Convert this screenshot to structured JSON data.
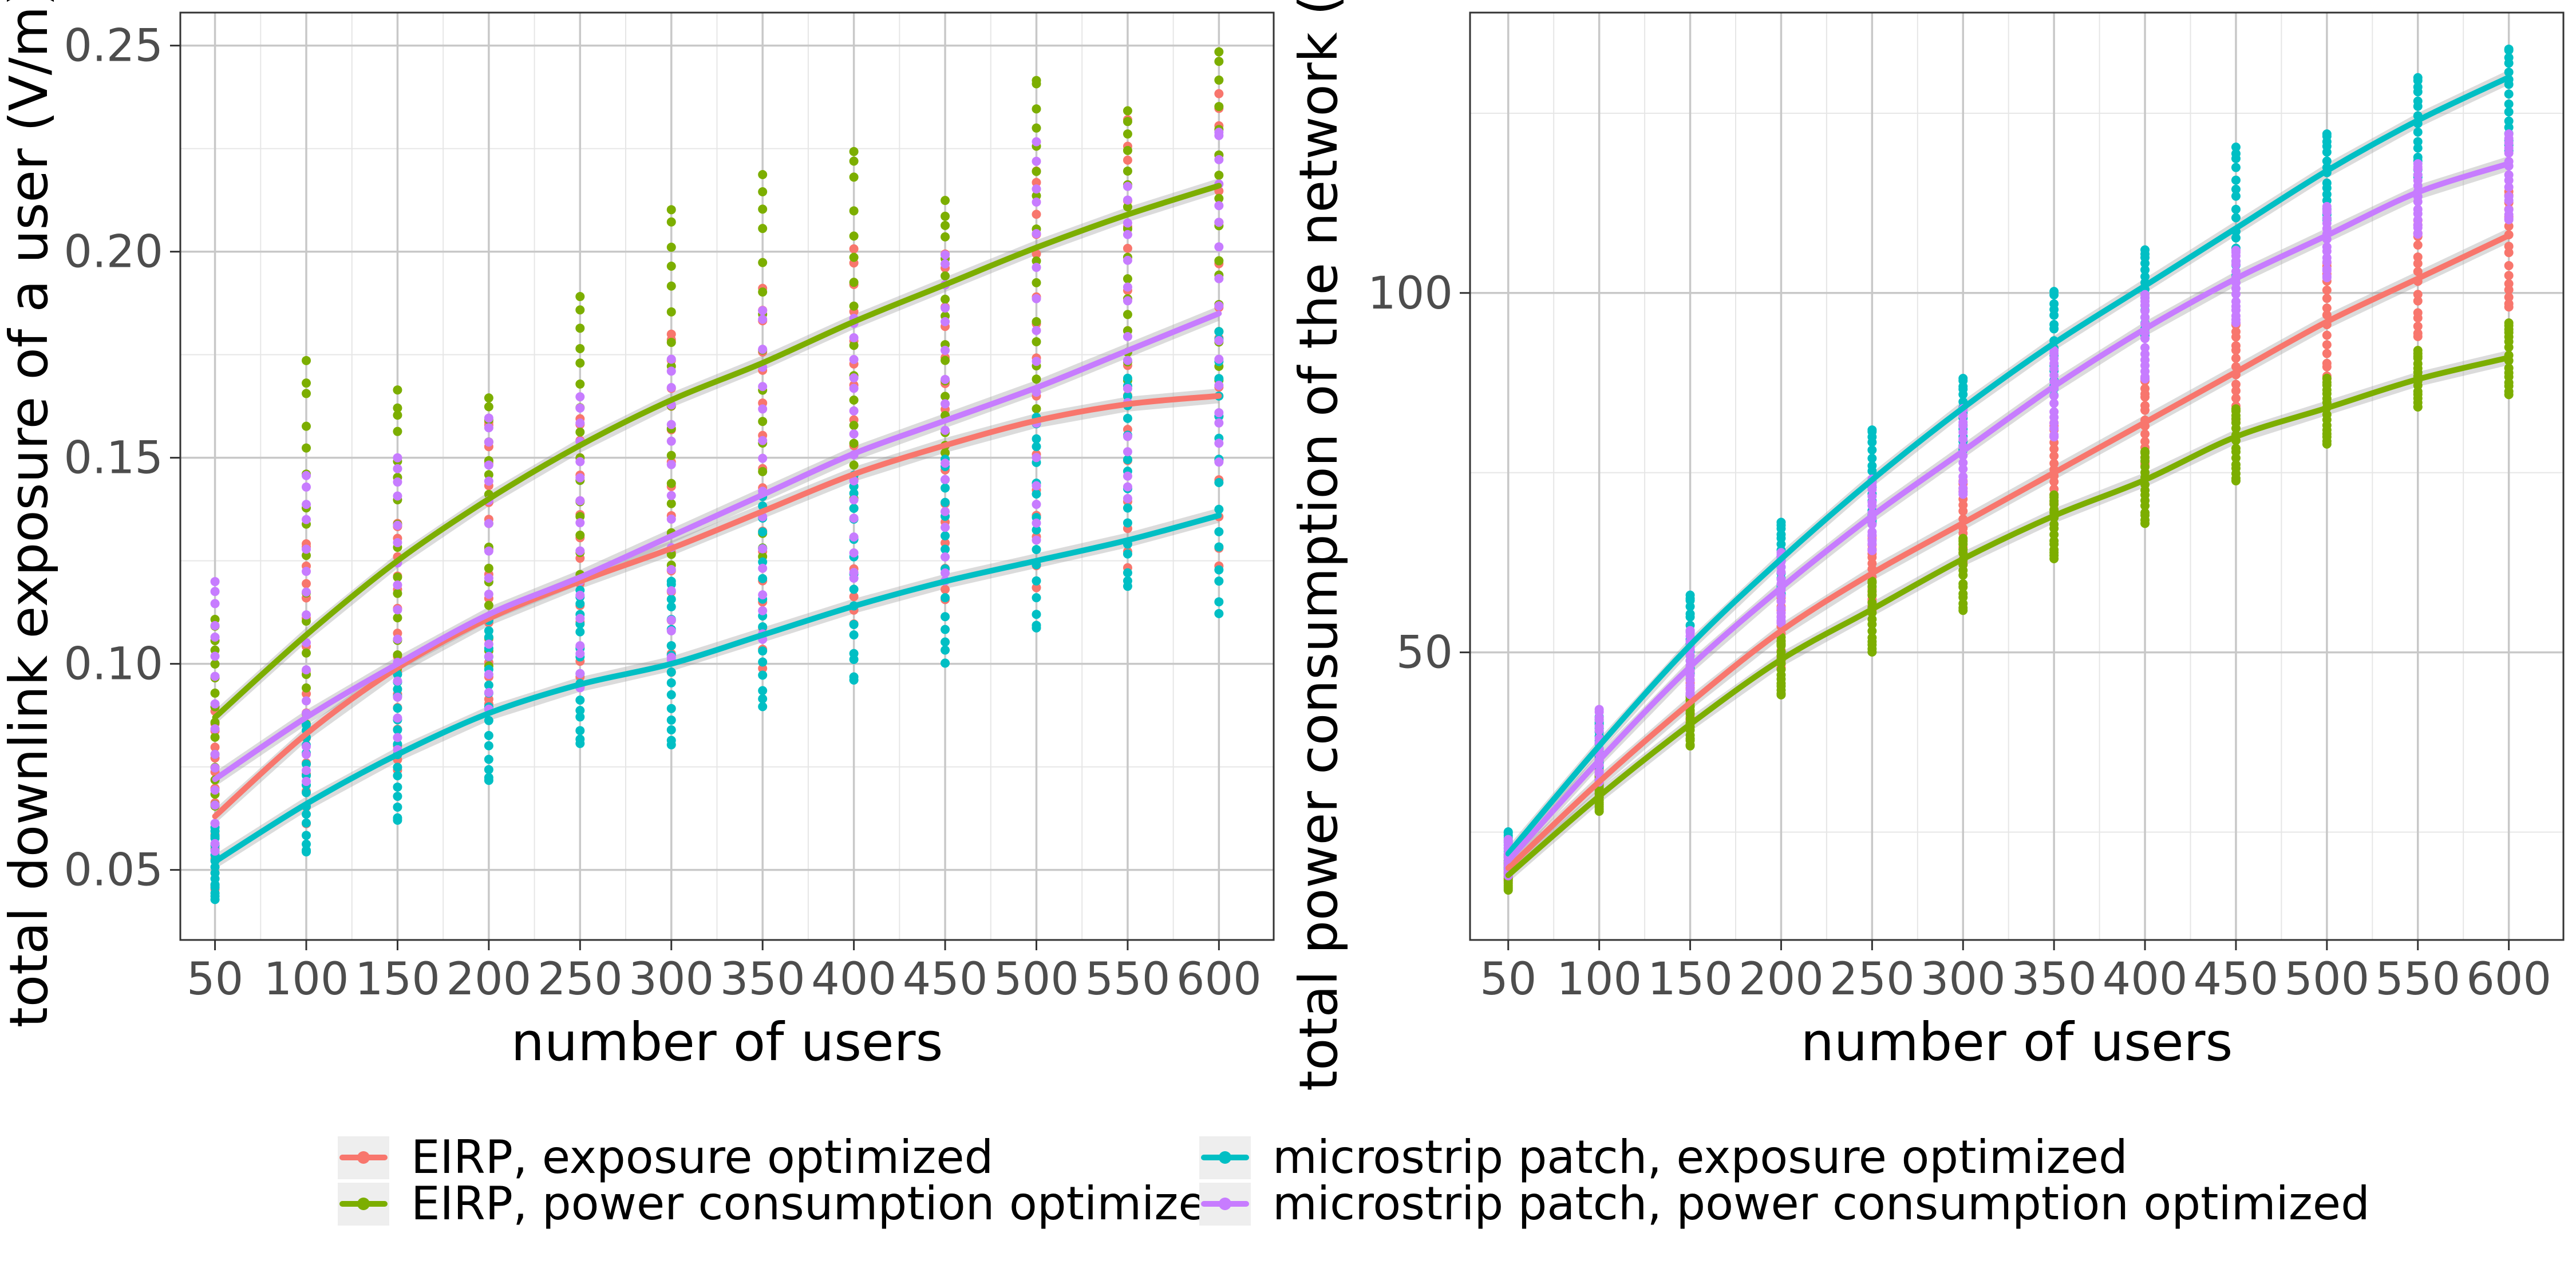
{
  "chart_data": [
    {
      "type": "scatter",
      "xlabel": "number of users",
      "ylabel": "total downlink exposure of a user (V/m)",
      "x_ticks": [
        50,
        100,
        150,
        200,
        250,
        300,
        350,
        400,
        450,
        500,
        550,
        600
      ],
      "y_ticks": [
        0.05,
        0.1,
        0.15,
        0.2,
        0.25
      ],
      "y_tick_labels": [
        "0.05",
        "0.10",
        "0.15",
        "0.20",
        "0.25"
      ],
      "xlim": [
        31,
        630
      ],
      "ylim": [
        0.033,
        0.258
      ],
      "grid": true,
      "series": [
        {
          "name": "EIRP, exposure optimized",
          "color": "#F8766D",
          "fit": [
            0.063,
            0.083,
            0.099,
            0.111,
            0.12,
            0.128,
            0.137,
            0.146,
            0.153,
            0.159,
            0.163,
            0.165
          ],
          "ranges": [
            [
              0.045,
              0.09
            ],
            [
              0.062,
              0.13
            ],
            [
              0.075,
              0.135
            ],
            [
              0.09,
              0.16
            ],
            [
              0.095,
              0.16
            ],
            [
              0.098,
              0.18
            ],
            [
              0.1,
              0.19
            ],
            [
              0.11,
              0.2
            ],
            [
              0.115,
              0.2
            ],
            [
              0.12,
              0.22
            ],
            [
              0.125,
              0.23
            ],
            [
              0.125,
              0.24
            ]
          ]
        },
        {
          "name": "EIRP, power consumption optimized",
          "color": "#7CAE00",
          "fit": [
            0.087,
            0.107,
            0.125,
            0.14,
            0.153,
            0.164,
            0.173,
            0.183,
            0.192,
            0.201,
            0.209,
            0.216
          ],
          "ranges": [
            [
              0.065,
              0.11
            ],
            [
              0.085,
              0.172
            ],
            [
              0.095,
              0.166
            ],
            [
              0.1,
              0.164
            ],
            [
              0.12,
              0.188
            ],
            [
              0.125,
              0.21
            ],
            [
              0.125,
              0.218
            ],
            [
              0.14,
              0.224
            ],
            [
              0.15,
              0.212
            ],
            [
              0.16,
              0.243
            ],
            [
              0.17,
              0.235
            ],
            [
              0.17,
              0.248
            ]
          ]
        },
        {
          "name": "microstrip patch, exposure optimized",
          "color": "#00BFC4",
          "fit": [
            0.052,
            0.066,
            0.078,
            0.088,
            0.095,
            0.1,
            0.107,
            0.114,
            0.12,
            0.125,
            0.13,
            0.136
          ],
          "ranges": [
            [
              0.043,
              0.06
            ],
            [
              0.054,
              0.085
            ],
            [
              0.062,
              0.097
            ],
            [
              0.071,
              0.11
            ],
            [
              0.081,
              0.118
            ],
            [
              0.08,
              0.12
            ],
            [
              0.089,
              0.14
            ],
            [
              0.096,
              0.145
            ],
            [
              0.101,
              0.15
            ],
            [
              0.108,
              0.16
            ],
            [
              0.118,
              0.17
            ],
            [
              0.113,
              0.18
            ]
          ]
        },
        {
          "name": "microstrip patch, power consumption optimized",
          "color": "#C77CFF",
          "fit": [
            0.072,
            0.087,
            0.1,
            0.112,
            0.121,
            0.131,
            0.141,
            0.151,
            0.159,
            0.167,
            0.176,
            0.185
          ],
          "ranges": [
            [
              0.055,
              0.12
            ],
            [
              0.07,
              0.145
            ],
            [
              0.08,
              0.15
            ],
            [
              0.09,
              0.16
            ],
            [
              0.095,
              0.165
            ],
            [
              0.1,
              0.175
            ],
            [
              0.105,
              0.185
            ],
            [
              0.12,
              0.185
            ],
            [
              0.12,
              0.2
            ],
            [
              0.13,
              0.225
            ],
            [
              0.14,
              0.215
            ],
            [
              0.15,
              0.23
            ]
          ]
        }
      ]
    },
    {
      "type": "scatter",
      "xlabel": "number of users",
      "ylabel": "total power consumption of the network (W)",
      "x_ticks": [
        50,
        100,
        150,
        200,
        250,
        300,
        350,
        400,
        450,
        500,
        550,
        600
      ],
      "y_ticks": [
        50,
        100
      ],
      "y_tick_labels": [
        "50",
        "100"
      ],
      "xlim": [
        29,
        630
      ],
      "ylim": [
        10,
        139
      ],
      "grid": true,
      "series": [
        {
          "name": "EIRP, exposure optimized",
          "color": "#F8766D",
          "fit": [
            20,
            32,
            43,
            53,
            61,
            68,
            75,
            82,
            89,
            96,
            102,
            108
          ],
          "ranges": [
            [
              18,
              22
            ],
            [
              30,
              36
            ],
            [
              40,
              48
            ],
            [
              48,
              58
            ],
            [
              56,
              66
            ],
            [
              62,
              74
            ],
            [
              70,
              82
            ],
            [
              76,
              88
            ],
            [
              82,
              96
            ],
            [
              88,
              104
            ],
            [
              94,
              110
            ],
            [
              98,
              114
            ]
          ]
        },
        {
          "name": "EIRP, power consumption optimized",
          "color": "#7CAE00",
          "fit": [
            19,
            30,
            40,
            49,
            56,
            63,
            69,
            74,
            80,
            84,
            88,
            91
          ],
          "ranges": [
            [
              17,
              21
            ],
            [
              28,
              33
            ],
            [
              37,
              44
            ],
            [
              44,
              52
            ],
            [
              50,
              60
            ],
            [
              56,
              66
            ],
            [
              63,
              72
            ],
            [
              68,
              78
            ],
            [
              74,
              84
            ],
            [
              79,
              88
            ],
            [
              84,
              92
            ],
            [
              86,
              96
            ]
          ]
        },
        {
          "name": "microstrip patch, exposure optimized",
          "color": "#00BFC4",
          "fit": [
            22,
            37,
            51,
            63,
            74,
            84,
            93,
            101,
            109,
            117,
            124,
            130
          ],
          "ranges": [
            [
              20,
              25
            ],
            [
              34,
              41
            ],
            [
              47,
              58
            ],
            [
              58,
              68
            ],
            [
              68,
              81
            ],
            [
              78,
              88
            ],
            [
              86,
              100
            ],
            [
              94,
              106
            ],
            [
              102,
              120
            ],
            [
              110,
              122
            ],
            [
              116,
              130
            ],
            [
              120,
              134
            ]
          ]
        },
        {
          "name": "microstrip patch, power consumption optimized",
          "color": "#C77CFF",
          "fit": [
            21,
            35,
            48,
            59,
            69,
            78,
            87,
            95,
            102,
            108,
            114,
            118
          ],
          "ranges": [
            [
              19,
              24
            ],
            [
              32,
              42
            ],
            [
              44,
              53
            ],
            [
              54,
              64
            ],
            [
              64,
              74
            ],
            [
              72,
              84
            ],
            [
              80,
              92
            ],
            [
              88,
              100
            ],
            [
              96,
              106
            ],
            [
              102,
              112
            ],
            [
              108,
              118
            ],
            [
              110,
              122
            ]
          ]
        }
      ]
    }
  ],
  "legend": {
    "items": [
      {
        "label": "EIRP, exposure optimized",
        "color": "#F8766D"
      },
      {
        "label": "EIRP, power consumption optimized",
        "color": "#7CAE00"
      },
      {
        "label": "microstrip patch, exposure optimized",
        "color": "#00BFC4"
      },
      {
        "label": "microstrip patch, power consumption optimized",
        "color": "#C77CFF"
      }
    ]
  }
}
